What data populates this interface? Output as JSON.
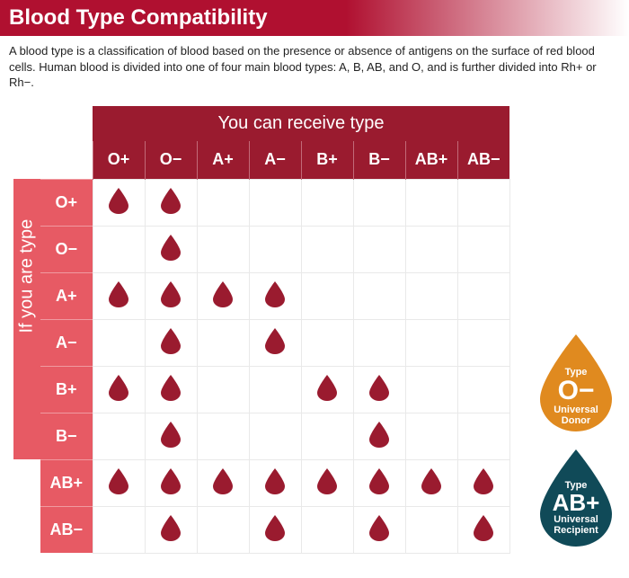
{
  "title": "Blood Type Compatibility",
  "intro": "A blood type is a classification of blood based on the presence or absence of antigens on the surface of red blood cells. Human blood is divided into one of four main blood types: A, B, AB, and O, and is further divided into Rh+ or Rh−.",
  "colors": {
    "title_bar": "#b01030",
    "top_header_bg": "#9a1b2f",
    "left_header_bg": "#e75a64",
    "cell_border": "#e9e9e9",
    "drop_fill": "#9a1b2f",
    "badge_donor_fill": "#e08a1f",
    "badge_recipient_fill": "#104a58"
  },
  "chart": {
    "type": "table",
    "super_col_label": "You can receive type",
    "super_row_label": "If you are type",
    "columns": [
      "O+",
      "O−",
      "A+",
      "A−",
      "B+",
      "B−",
      "AB+",
      "AB−"
    ],
    "rows": [
      "O+",
      "O−",
      "A+",
      "A−",
      "B+",
      "B−",
      "AB+",
      "AB−"
    ],
    "matrix": [
      [
        1,
        1,
        0,
        0,
        0,
        0,
        0,
        0
      ],
      [
        0,
        1,
        0,
        0,
        0,
        0,
        0,
        0
      ],
      [
        1,
        1,
        1,
        1,
        0,
        0,
        0,
        0
      ],
      [
        0,
        1,
        0,
        1,
        0,
        0,
        0,
        0
      ],
      [
        1,
        1,
        0,
        0,
        1,
        1,
        0,
        0
      ],
      [
        0,
        1,
        0,
        0,
        0,
        1,
        0,
        0
      ],
      [
        1,
        1,
        1,
        1,
        1,
        1,
        1,
        1
      ],
      [
        0,
        1,
        0,
        1,
        0,
        1,
        0,
        1
      ]
    ]
  },
  "badges": {
    "donor": {
      "type_label": "Type",
      "big": "O−",
      "sub1": "Universal",
      "sub2": "Donor"
    },
    "recipient": {
      "type_label": "Type",
      "big": "AB+",
      "sub1": "Universal",
      "sub2": "Recipient"
    }
  }
}
